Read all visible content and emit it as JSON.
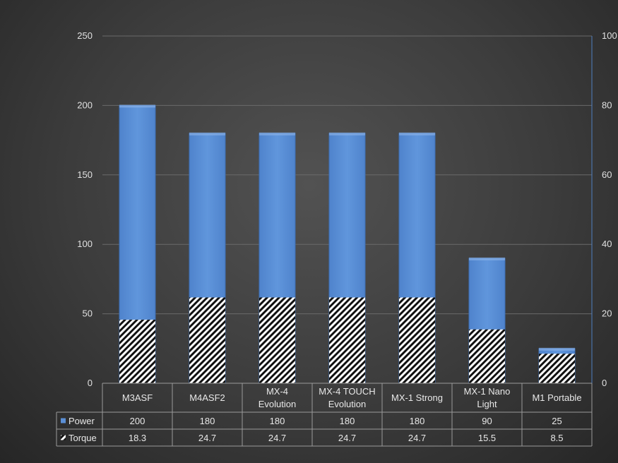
{
  "chart_data": {
    "type": "bar",
    "categories": [
      [
        "M3ASF"
      ],
      [
        "M4ASF2"
      ],
      [
        "MX-4",
        "Evolution"
      ],
      [
        "MX-4 TOUCH",
        "Evolution"
      ],
      [
        "MX-1 Strong"
      ],
      [
        "MX-1 Nano",
        "Light"
      ],
      [
        "M1 Portable"
      ]
    ],
    "series": [
      {
        "name": "Power",
        "axis": "left",
        "color": "#5b8fd6",
        "values": [
          200,
          180,
          180,
          180,
          180,
          90,
          25
        ]
      },
      {
        "name": "Torque",
        "axis": "right",
        "pattern": "diagonal-hatch",
        "color": "#ffffff",
        "values": [
          18.3,
          24.7,
          24.7,
          24.7,
          24.7,
          15.5,
          8.5
        ]
      }
    ],
    "table_values": {
      "Power": [
        "200",
        "180",
        "180",
        "180",
        "180",
        "90",
        "25"
      ],
      "Torque": [
        "18.3",
        "24.7",
        "24.7",
        "24.7",
        "24.7",
        "15.5",
        "8.5"
      ]
    },
    "left_axis": {
      "ylim": [
        0,
        250
      ],
      "ticks": [
        "0",
        "50",
        "100",
        "150",
        "200",
        "250"
      ]
    },
    "right_axis": {
      "ylim": [
        0,
        100
      ],
      "ticks": [
        "0",
        "20",
        "40",
        "60",
        "80",
        "100"
      ]
    },
    "grid": true,
    "legend": "data-table"
  }
}
